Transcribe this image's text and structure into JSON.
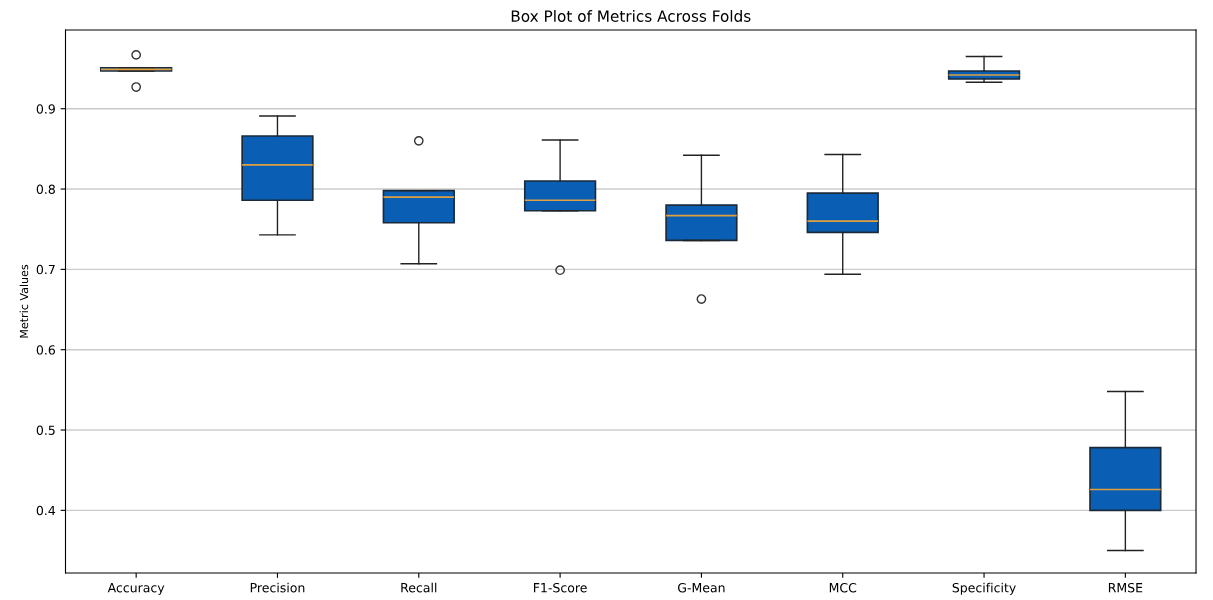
{
  "chart_data": {
    "type": "box",
    "title": "Box Plot of Metrics Across Folds",
    "ylabel": "Metric Values",
    "categories": [
      "Accuracy",
      "Precision",
      "Recall",
      "F1-Score",
      "G-Mean",
      "MCC",
      "Specificity",
      "RMSE"
    ],
    "boxes": [
      {
        "low": 0.947,
        "q1": 0.947,
        "median": 0.949,
        "q3": 0.951,
        "high": 0.951,
        "outliers": [
          0.967,
          0.927
        ]
      },
      {
        "low": 0.743,
        "q1": 0.786,
        "median": 0.83,
        "q3": 0.866,
        "high": 0.891
      },
      {
        "low": 0.707,
        "q1": 0.758,
        "median": 0.79,
        "q3": 0.798,
        "high": 0.798,
        "outliers": [
          0.86
        ]
      },
      {
        "low": 0.773,
        "q1": 0.773,
        "median": 0.786,
        "q3": 0.81,
        "high": 0.861,
        "outliers": [
          0.699
        ]
      },
      {
        "low": 0.736,
        "q1": 0.736,
        "median": 0.767,
        "q3": 0.78,
        "high": 0.842,
        "outliers": [
          0.663
        ]
      },
      {
        "low": 0.694,
        "q1": 0.746,
        "median": 0.76,
        "q3": 0.795,
        "high": 0.843
      },
      {
        "low": 0.933,
        "q1": 0.937,
        "median": 0.942,
        "q3": 0.947,
        "high": 0.965
      },
      {
        "low": 0.35,
        "q1": 0.4,
        "median": 0.426,
        "q3": 0.478,
        "high": 0.548
      }
    ],
    "color": "#0a5fb4",
    "ylim": [
      0.322,
      0.998
    ],
    "yticks": [
      0.4,
      0.5,
      0.6,
      0.7,
      0.8,
      0.9
    ],
    "grid": "y"
  }
}
